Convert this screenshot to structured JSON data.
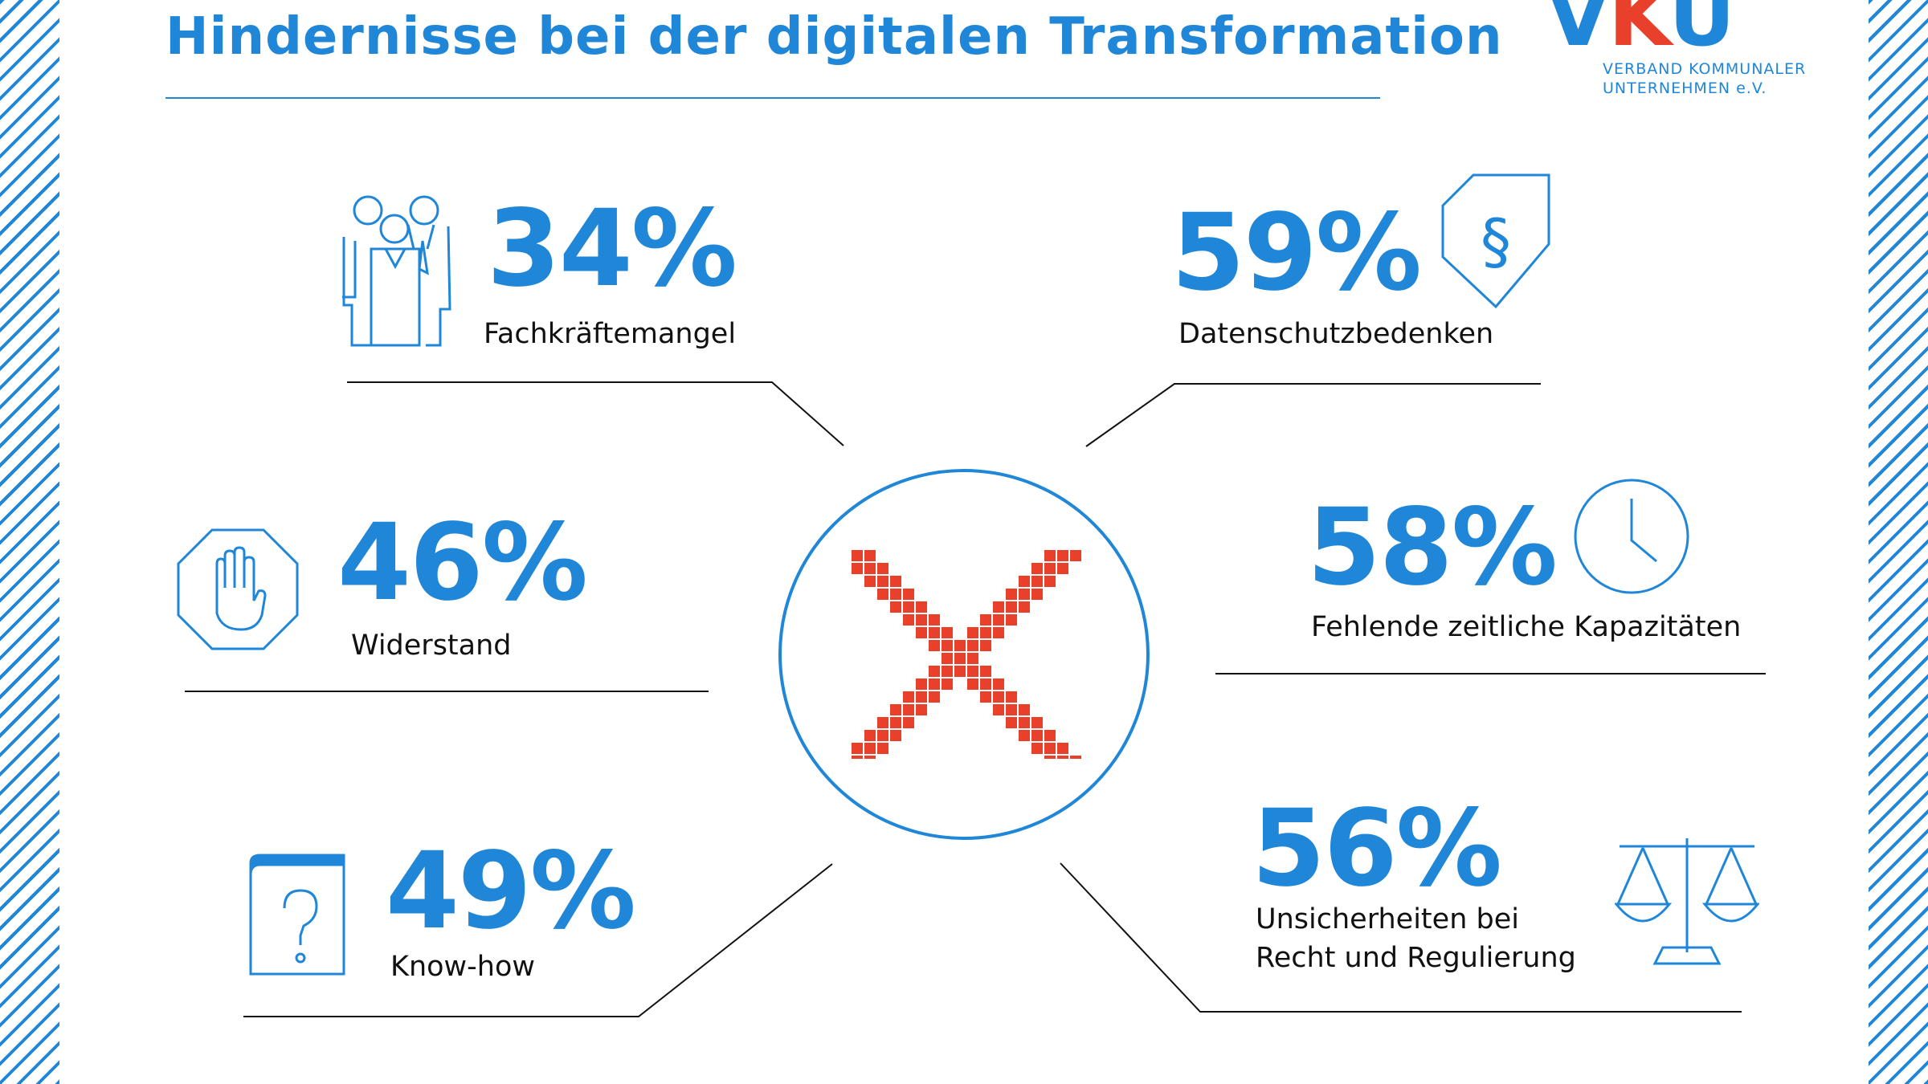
{
  "header": {
    "title": "Hindernisse bei der digitalen Transformation",
    "logo_mark_prefix": "V",
    "logo_mark_k": "K",
    "logo_mark_suffix": "U",
    "logo_line1": "VERBAND KOMMUNALER",
    "logo_line2": "UNTERNEHMEN e.V."
  },
  "colors": {
    "accent": "#1f86d8",
    "cross": "#e8402a",
    "text": "#111111"
  },
  "stats": [
    {
      "value": "34%",
      "label": "Fachkräftemangel",
      "icon": "people-group-icon"
    },
    {
      "value": "59%",
      "label": "Datenschutzbedenken",
      "icon": "shield-paragraph-icon"
    },
    {
      "value": "46%",
      "label": "Widerstand",
      "icon": "stop-hand-icon"
    },
    {
      "value": "58%",
      "label": "Fehlende zeitliche Kapazitäten",
      "icon": "clock-icon"
    },
    {
      "value": "49%",
      "label": "Know-how",
      "icon": "book-question-icon"
    },
    {
      "value": "56%",
      "label_line1": "Unsicherheiten bei",
      "label_line2": "Recht und Regulierung",
      "icon": "scales-icon"
    }
  ],
  "center_icon": "red-x-icon"
}
